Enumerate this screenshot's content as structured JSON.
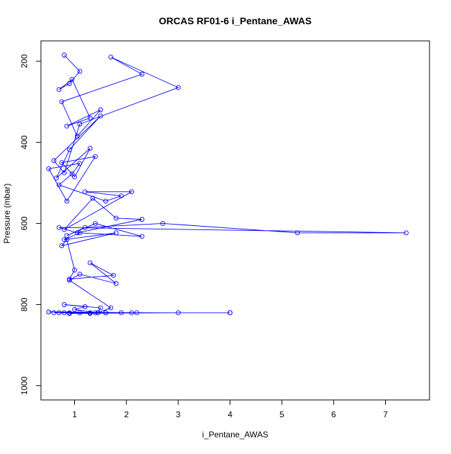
{
  "chart_data": {
    "type": "line",
    "title": "ORCAS RF01-6 i_Pentane_AWAS",
    "xlabel": "i_Pentane_AWAS",
    "ylabel": "Pressure (mbar)",
    "xlim": [
      0.35,
      7.85
    ],
    "ylim": [
      1035,
      150
    ],
    "y_reversed": true,
    "x_ticks": [
      1,
      2,
      3,
      4,
      5,
      6,
      7
    ],
    "x_tick_labels": [
      "1",
      "2",
      "3",
      "4",
      "5",
      "6",
      "7"
    ],
    "y_ticks": [
      200,
      400,
      600,
      800,
      1000
    ],
    "y_tick_labels": [
      "200",
      "400",
      "600",
      "800",
      "1000"
    ],
    "grid": false,
    "legend": "none",
    "marker": "open-circle",
    "series_color": "#0000ff",
    "series": [
      {
        "x": [
          0.8,
          1.1,
          0.9,
          0.7,
          0.95,
          1.3,
          0.85,
          1.5,
          1.05,
          0.75,
          2.3,
          1.7,
          3.0,
          1.1,
          0.8,
          0.6,
          1.5,
          0.9,
          0.65,
          1.3,
          1.0,
          0.75,
          1.4,
          0.85,
          0.5,
          1.1,
          0.95,
          0.7,
          1.6,
          1.9,
          1.2,
          2.1,
          0.8,
          1.35,
          1.8,
          2.3,
          1.05,
          0.7,
          7.4,
          5.3,
          2.7,
          1.2,
          0.85,
          1.4,
          2.3,
          1.1,
          0.8,
          1.8,
          0.75,
          0.85,
          1.0,
          0.9,
          1.75,
          1.3,
          1.8,
          1.1,
          0.9,
          1.7,
          1.45,
          1.5,
          0.8,
          1.2,
          1.0,
          1.4,
          2.1,
          3.0,
          0.9,
          1.6,
          4.0,
          0.6,
          1.3,
          1.9,
          0.5,
          2.2,
          1.45,
          4.0,
          0.9,
          1.1,
          0.7,
          1.3,
          1.6,
          0.8
        ],
        "y": [
          185,
          225,
          255,
          270,
          245,
          340,
          360,
          320,
          385,
          300,
          232,
          190,
          265,
          355,
          475,
          445,
          335,
          418,
          488,
          415,
          485,
          450,
          435,
          545,
          465,
          452,
          478,
          505,
          545,
          532,
          522,
          522,
          615,
          538,
          587,
          590,
          623,
          610,
          623,
          623,
          600,
          610,
          630,
          600,
          632,
          623,
          640,
          623,
          655,
          640,
          715,
          737,
          728,
          697,
          748,
          725,
          740,
          808,
          820,
          808,
          800,
          805,
          812,
          820,
          820,
          820,
          822,
          820,
          820,
          820,
          820,
          820,
          818,
          820,
          820,
          820,
          820,
          820,
          820,
          822,
          820,
          820
        ]
      }
    ]
  }
}
